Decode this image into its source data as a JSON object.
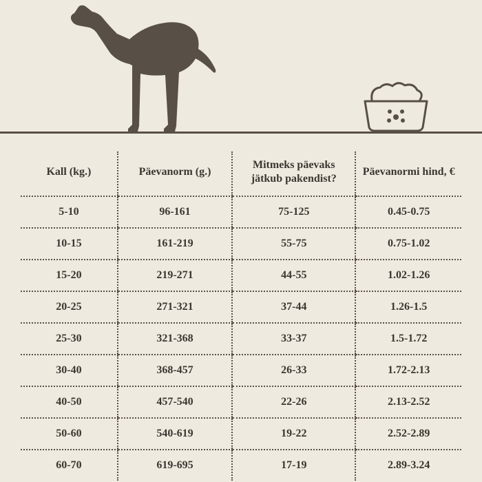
{
  "colors": {
    "background": "#eeeae0",
    "text": "#3a3630",
    "silhouette": "#585047",
    "border": "#585047"
  },
  "typography": {
    "font_family": "Georgia, serif",
    "header_fontsize": 16,
    "cell_fontsize": 16,
    "weight": "bold"
  },
  "illustration": {
    "dog_icon": "greyhound-silhouette",
    "bowl_icon": "food-bowl-outline"
  },
  "table": {
    "type": "table",
    "columns": [
      {
        "label": "Kall (kg.)",
        "width_pct": 22,
        "align": "center"
      },
      {
        "label": "Päevanorm (g.)",
        "width_pct": 26,
        "align": "center"
      },
      {
        "label": "Mitmeks päevaks jätkub pakendist?",
        "width_pct": 28,
        "align": "center"
      },
      {
        "label": "Päevanormi hind, €",
        "width_pct": 24,
        "align": "center"
      }
    ],
    "rows": [
      [
        "5-10",
        "96-161",
        "75-125",
        "0.45-0.75"
      ],
      [
        "10-15",
        "161-219",
        "55-75",
        "0.75-1.02"
      ],
      [
        "15-20",
        "219-271",
        "44-55",
        "1.02-1.26"
      ],
      [
        "20-25",
        "271-321",
        "37-44",
        "1.26-1.5"
      ],
      [
        "25-30",
        "321-368",
        "33-37",
        "1.5-1.72"
      ],
      [
        "30-40",
        "368-457",
        "26-33",
        "1.72-2.13"
      ],
      [
        "40-50",
        "457-540",
        "22-26",
        "2.13-2.52"
      ],
      [
        "50-60",
        "540-619",
        "19-22",
        "2.52-2.89"
      ],
      [
        "60-70",
        "619-695",
        "17-19",
        "2.89-3.24"
      ]
    ],
    "border_style": "dotted",
    "border_color": "#585047"
  }
}
